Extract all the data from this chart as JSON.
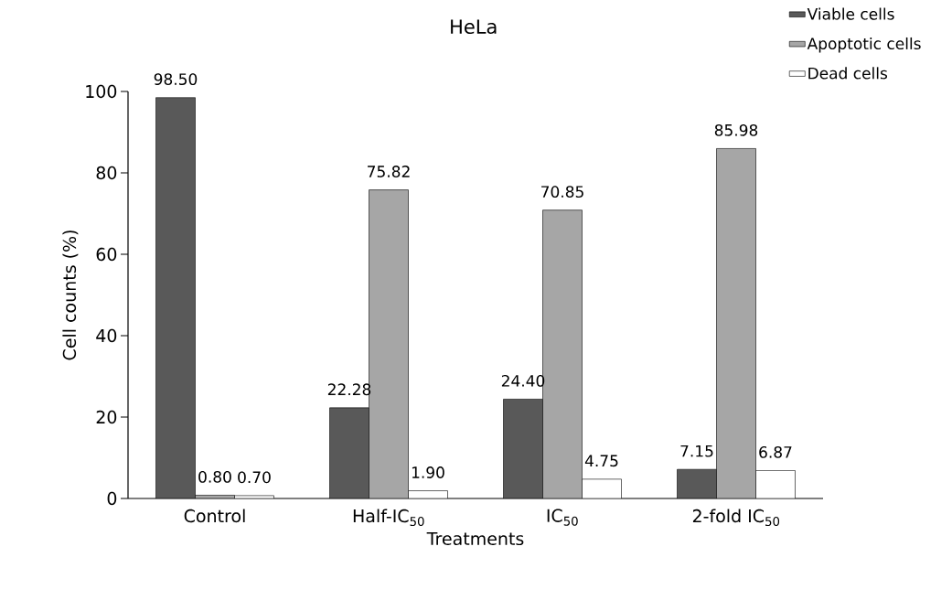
{
  "chart_data": {
    "type": "bar",
    "title": "HeLa",
    "xlabel": "Treatments",
    "ylabel": "Cell counts (%)",
    "categories": [
      "Control",
      "Half-IC$_{50}$",
      "IC$_{50}$",
      "2-fold IC$_{50}$"
    ],
    "series": [
      {
        "name": "Viable cells",
        "color": "#595959",
        "values": [
          98.5,
          22.28,
          24.4,
          7.15
        ],
        "value_labels": [
          "98.50",
          "22.28",
          "24.40",
          "7.15"
        ]
      },
      {
        "name": "Apoptotic cells",
        "color": "#a6a6a6",
        "values": [
          0.8,
          75.82,
          70.85,
          85.98
        ],
        "value_labels": [
          "0.80",
          "75.82",
          "70.85",
          "85.98"
        ]
      },
      {
        "name": "Dead cells",
        "color": "#ffffff",
        "values": [
          0.7,
          1.9,
          4.75,
          6.87
        ],
        "value_labels": [
          "0.70",
          "1.90",
          "4.75",
          "6.87"
        ]
      }
    ],
    "ylim": [
      0,
      100
    ],
    "yticks": [
      0,
      20,
      40,
      60,
      80,
      100
    ],
    "legend": "top right"
  }
}
